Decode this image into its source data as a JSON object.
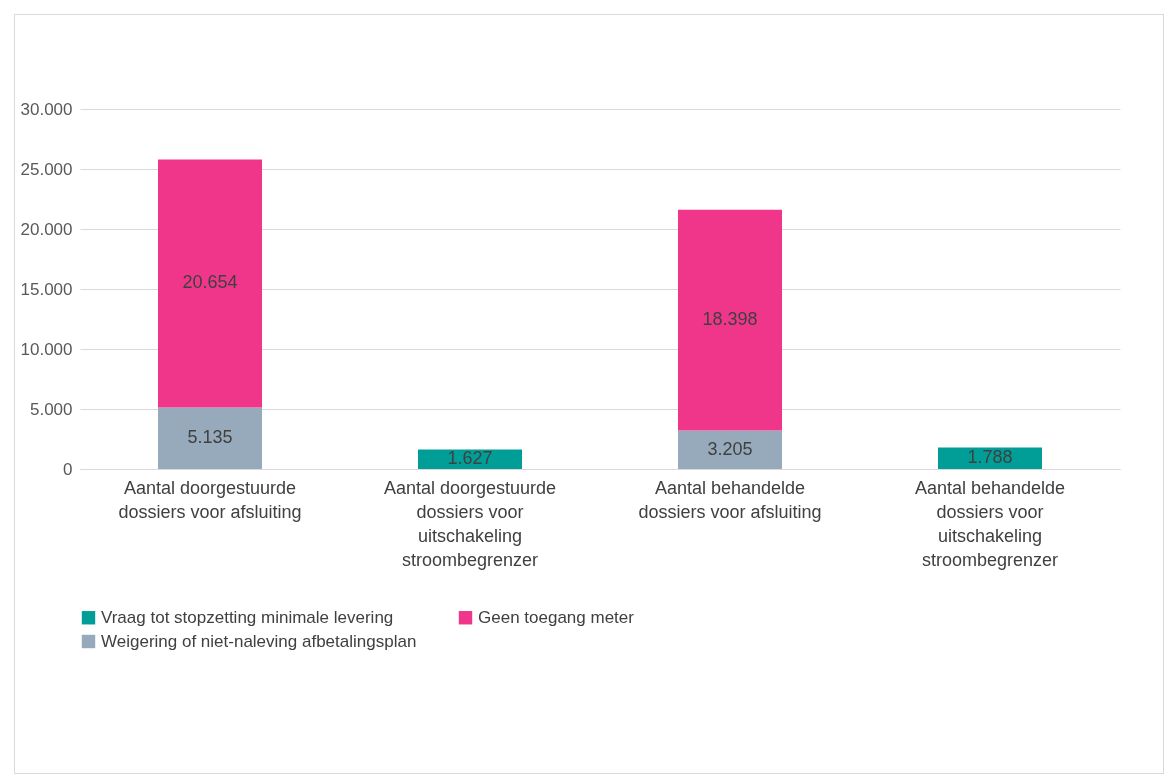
{
  "chart_data": {
    "type": "bar",
    "stacked": true,
    "categories": [
      "Aantal doorgestuurde dossiers voor afsluiting",
      "Aantal doorgestuurde dossiers voor uitschakeling stroombegrenzer",
      "Aantal behandelde dossiers voor afsluiting",
      "Aantal behandelde dossiers voor uitschakeling stroombegrenzer"
    ],
    "series": [
      {
        "name": "Weigering of niet-naleving afbetalingsplan",
        "color": "#96aabb",
        "values": [
          5135,
          null,
          3205,
          null
        ],
        "value_labels": [
          "5.135",
          null,
          "3.205",
          null
        ]
      },
      {
        "name": "Geen toegang meter",
        "color": "#f0368a",
        "values": [
          20654,
          null,
          18398,
          null
        ],
        "value_labels": [
          "20.654",
          null,
          "18.398",
          null
        ]
      },
      {
        "name": "Vraag tot stopzetting minimale levering",
        "color": "#009e96",
        "values": [
          null,
          1627,
          null,
          1788
        ],
        "value_labels": [
          null,
          "1.627",
          null,
          "1.788"
        ]
      }
    ],
    "ylim": [
      0,
      30000
    ],
    "yticks": [
      0,
      {
        "value": 5000,
        "label": "5.000"
      },
      {
        "value": 10000,
        "label": "10.000"
      },
      {
        "value": 15000,
        "label": "15.000"
      },
      {
        "value": 20000,
        "label": "20.000"
      },
      {
        "value": 25000,
        "label": "25.000"
      },
      {
        "value": 30000,
        "label": "30.000"
      }
    ],
    "grid": "y",
    "legend": "bottom"
  }
}
